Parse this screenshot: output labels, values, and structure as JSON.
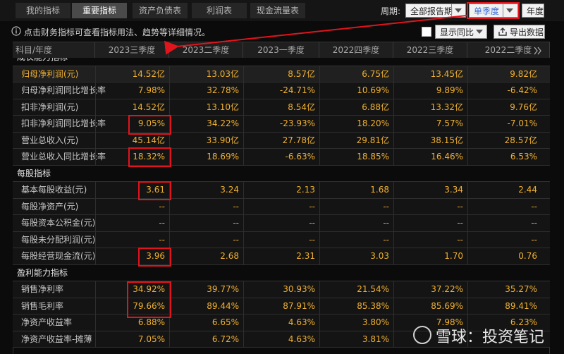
{
  "tabs": [
    "我的指标",
    "重要指标",
    "资产负债表",
    "利润表",
    "现金流量表"
  ],
  "period": {
    "label": "周期:",
    "options": [
      "全部报告期",
      "单季度",
      "年度"
    ]
  },
  "info": "点击财务指标可查看指标用法、趋势等详细情况。",
  "controls": {
    "yoy": "显示同比",
    "export": "导出数据"
  },
  "table": {
    "corner": "科目/年度",
    "columns": [
      "2023三季度",
      "2023二季度",
      "2023一季度",
      "2022四季度",
      "2022三季度",
      "2022二季度"
    ],
    "sections": [
      {
        "title": "成长能力指标",
        "rows": [
          {
            "label": "归母净利润(元)",
            "values": [
              "14.52亿",
              "13.03亿",
              "8.57亿",
              "6.75亿",
              "13.45亿",
              "9.82亿"
            ]
          },
          {
            "label": "归母净利润同比增长率",
            "values": [
              "7.98%",
              "32.78%",
              "-24.71%",
              "10.69%",
              "9.89%",
              "-6.42%"
            ]
          },
          {
            "label": "扣非净利润(元)",
            "values": [
              "14.52亿",
              "13.10亿",
              "8.54亿",
              "6.88亿",
              "13.32亿",
              "9.76亿"
            ]
          },
          {
            "label": "扣非净利润同比增长率",
            "values": [
              "9.05%",
              "34.22%",
              "-23.93%",
              "18.20%",
              "7.57%",
              "-7.01%"
            ]
          },
          {
            "label": "营业总收入(元)",
            "values": [
              "45.14亿",
              "33.90亿",
              "27.78亿",
              "29.81亿",
              "38.15亿",
              "28.57亿"
            ]
          },
          {
            "label": "营业总收入同比增长率",
            "values": [
              "18.32%",
              "18.69%",
              "-6.63%",
              "18.85%",
              "16.46%",
              "6.53%"
            ]
          }
        ]
      },
      {
        "title": "每股指标",
        "rows": [
          {
            "label": "基本每股收益(元)",
            "values": [
              "3.61",
              "3.24",
              "2.13",
              "1.68",
              "3.34",
              "2.44"
            ]
          },
          {
            "label": "每股净资产(元)",
            "values": [
              "--",
              "--",
              "--",
              "--",
              "--",
              "--"
            ]
          },
          {
            "label": "每股资本公积金(元)",
            "values": [
              "--",
              "--",
              "--",
              "--",
              "--",
              "--"
            ]
          },
          {
            "label": "每股未分配利润(元)",
            "values": [
              "--",
              "--",
              "--",
              "--",
              "--",
              "--"
            ]
          },
          {
            "label": "每股经营现金流(元)",
            "values": [
              "3.96",
              "2.68",
              "2.31",
              "3.03",
              "1.70",
              "0.76"
            ]
          }
        ]
      },
      {
        "title": "盈利能力指标",
        "rows": [
          {
            "label": "销售净利率",
            "values": [
              "34.92%",
              "39.77%",
              "30.93%",
              "21.54%",
              "37.22%",
              "35.27%"
            ]
          },
          {
            "label": "销售毛利率",
            "values": [
              "79.66%",
              "89.44%",
              "87.91%",
              "85.38%",
              "85.69%",
              "89.41%"
            ]
          },
          {
            "label": "净资产收益率",
            "values": [
              "6.88%",
              "6.65%",
              "4.63%",
              "3.80%",
              "7.98%",
              "6.23%"
            ]
          },
          {
            "label": "净资产收益率-摊薄",
            "values": [
              "7.05%",
              "6.72%",
              "4.63%",
              "3.81%",
              null,
              null
            ]
          }
        ]
      }
    ]
  },
  "watermark": "雪球：投资笔记"
}
